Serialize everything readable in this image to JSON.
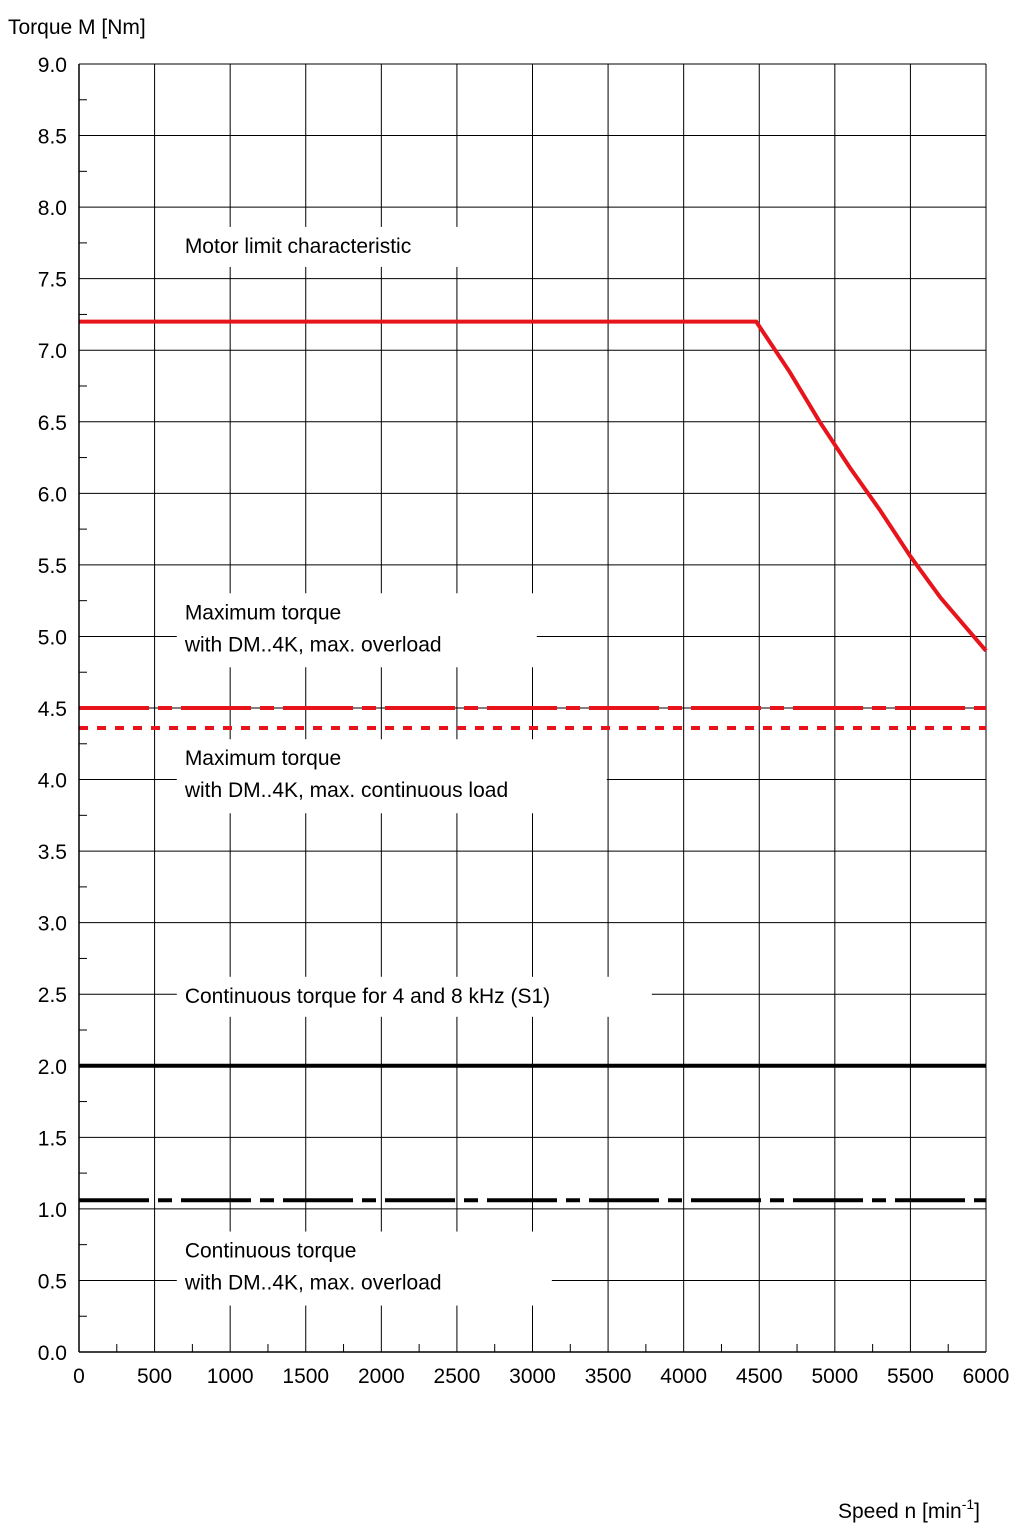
{
  "chart_data": {
    "type": "line",
    "xlabel": "Speed n [min",
    "xlabel_sup": "-1",
    "xlabel_end": "]",
    "ylabel": "Torque M [Nm]",
    "xlim": [
      0,
      6000
    ],
    "ylim": [
      0,
      9.0
    ],
    "grid": true,
    "x_ticks": [
      0,
      500,
      1000,
      1500,
      2000,
      2500,
      3000,
      3500,
      4000,
      4500,
      5000,
      5500,
      6000
    ],
    "x_tick_labels": [
      "0",
      "500",
      "1000",
      "1500",
      "2000",
      "2500",
      "3000",
      "3500",
      "4000",
      "4500",
      "5000",
      "5500",
      "6000"
    ],
    "y_ticks": [
      0,
      0.5,
      1.0,
      1.5,
      2.0,
      2.5,
      3.0,
      3.5,
      4.0,
      4.5,
      5.0,
      5.5,
      6.0,
      6.5,
      7.0,
      7.5,
      8.0,
      8.5,
      9.0
    ],
    "y_tick_labels": [
      "0.0",
      "0.5",
      "1.0",
      "1.5",
      "2.0",
      "2.5",
      "3.0",
      "3.5",
      "4.0",
      "4.5",
      "5.0",
      "5.5",
      "6.0",
      "6.5",
      "7.0",
      "7.5",
      "8.0",
      "8.5",
      "9.0"
    ],
    "series": [
      {
        "color": "#e8141b",
        "style": "solid",
        "x": [
          0,
          4480,
          4700,
          4900,
          5100,
          5300,
          5500,
          5700,
          6000
        ],
        "y": [
          7.2,
          7.2,
          6.85,
          6.5,
          6.18,
          5.88,
          5.56,
          5.27,
          4.9
        ]
      },
      {
        "color": "#e8141b",
        "style": "dash-dot",
        "x": [
          0,
          6000
        ],
        "y": [
          4.5,
          4.5
        ]
      },
      {
        "color": "#e8141b",
        "style": "dotted",
        "x": [
          0,
          6000
        ],
        "y": [
          4.36,
          4.36
        ]
      },
      {
        "color": "#000000",
        "style": "solid",
        "x": [
          0,
          6000
        ],
        "y": [
          2.0,
          2.0
        ]
      },
      {
        "color": "#000000",
        "style": "dash-dot",
        "x": [
          0,
          6000
        ],
        "y": [
          1.06,
          1.06
        ]
      }
    ],
    "annotations": [
      {
        "lines": [
          "Motor limit characteristic"
        ]
      },
      {
        "lines": [
          "Maximum torque",
          "with DM..4K, max. overload"
        ]
      },
      {
        "lines": [
          "Maximum torque",
          "with DM..4K, max. continuous load"
        ]
      },
      {
        "lines": [
          "Continuous torque for 4 and 8 kHz (S1)"
        ]
      },
      {
        "lines": [
          "Continuous torque",
          "with DM..4K, max. overload"
        ]
      }
    ]
  }
}
